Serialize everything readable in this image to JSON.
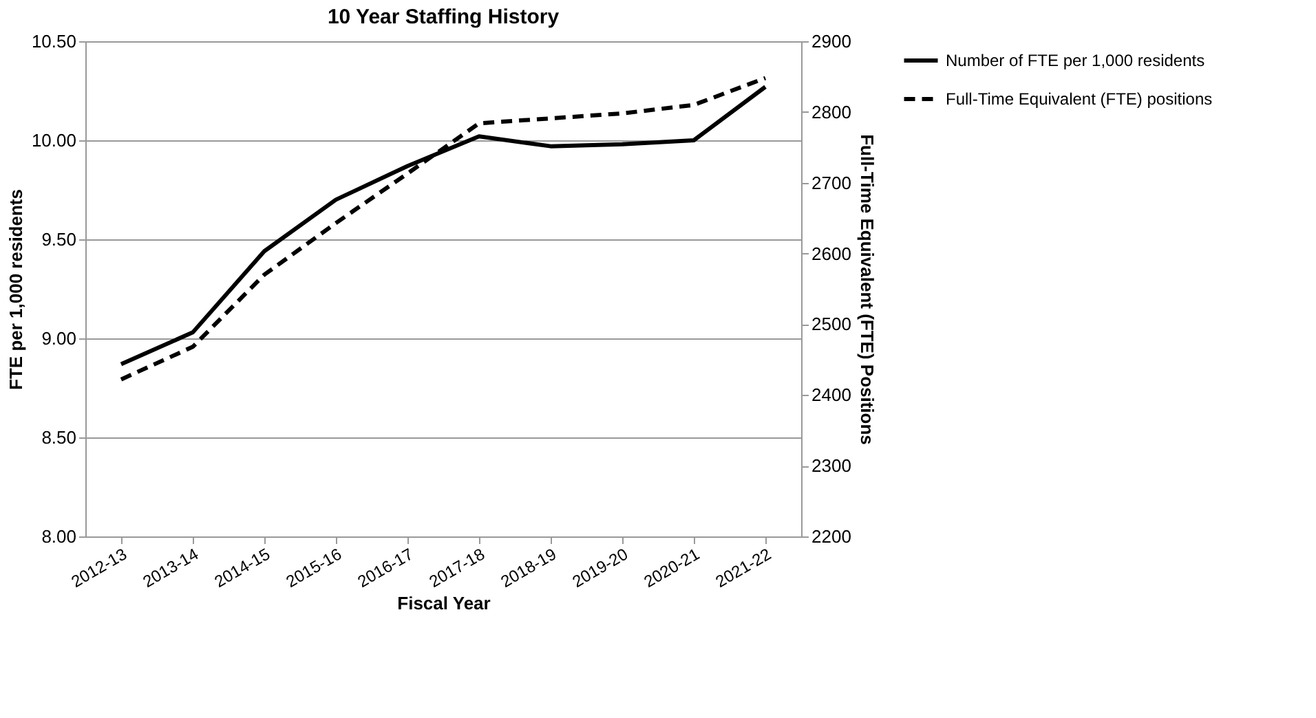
{
  "chart_data": {
    "type": "line",
    "title": "10 Year Staffing History",
    "xlabel": "Fiscal Year",
    "ylabel": "FTE per 1,000 residents",
    "y2label": "Full-Time Equivalent (FTE) Positions",
    "categories": [
      "2012-13",
      "2013-14",
      "2014-15",
      "2015-16",
      "2016-17",
      "2017-18",
      "2018-19",
      "2019-20",
      "2020-21",
      "2021-22"
    ],
    "series": [
      {
        "name": "Number of FTE per 1,000 residents",
        "color": "#000000",
        "line_style": "solid",
        "values": [
          8.87,
          9.03,
          9.44,
          9.7,
          9.87,
          10.02,
          9.97,
          9.98,
          10.0,
          10.27
        ]
      },
      {
        "name": "Full-Time Equivalent (FTE) positions",
        "color": "#000000",
        "line_style": "dashed",
        "axis": "y2",
        "values": [
          2422,
          2468,
          2570,
          2643,
          2713,
          2784,
          2791,
          2798,
          2810,
          2848
        ]
      }
    ],
    "ylim": [
      8.0,
      10.5
    ],
    "yticks": [
      {
        "value": 8.0,
        "label": "8.00"
      },
      {
        "value": 8.5,
        "label": "8.50"
      },
      {
        "value": 9.0,
        "label": "9.00"
      },
      {
        "value": 9.5,
        "label": "9.50"
      },
      {
        "value": 10.0,
        "label": "10.00"
      },
      {
        "value": 10.5,
        "label": "10.50"
      }
    ],
    "y2lim": [
      2200,
      2900
    ],
    "y2ticks": [
      2200,
      2300,
      2400,
      2500,
      2600,
      2700,
      2800,
      2900
    ],
    "grid": "y",
    "legend": "right",
    "marker": "none"
  }
}
